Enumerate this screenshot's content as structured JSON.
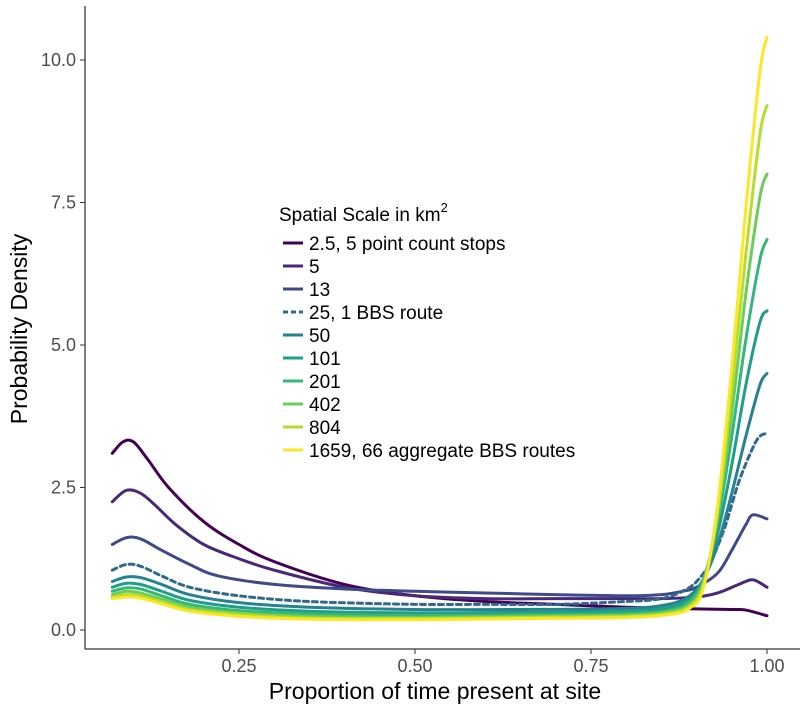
{
  "chart_data": {
    "type": "line",
    "xlabel": "Proportion of time present at site",
    "ylabel": "Probability Density",
    "xlim": [
      0.05,
      1.02
    ],
    "ylim": [
      -0.35,
      10.8
    ],
    "xticks": [
      0.25,
      0.5,
      0.75,
      1.0
    ],
    "xtick_labels": [
      "0.25",
      "0.50",
      "0.75",
      "1.00"
    ],
    "yticks": [
      0,
      2.5,
      5,
      7.5,
      10
    ],
    "ytick_labels": [
      "0.0",
      "2.5",
      "5.0",
      "7.5",
      "10.0"
    ],
    "grid": false,
    "legend": {
      "title": "Spatial Scale in km",
      "title_superscript": "2",
      "placement": "inside-center-left"
    },
    "series": [
      {
        "name": "2.5, 5 point count stops",
        "color": "#440154",
        "dashed": false,
        "x": [
          0.07,
          0.085,
          0.1,
          0.12,
          0.15,
          0.2,
          0.25,
          0.3,
          0.4,
          0.5,
          0.6,
          0.7,
          0.8,
          0.85,
          0.9,
          0.95,
          0.97,
          1.0
        ],
        "y": [
          3.1,
          3.3,
          3.3,
          3.0,
          2.5,
          1.9,
          1.5,
          1.2,
          0.8,
          0.6,
          0.5,
          0.45,
          0.4,
          0.38,
          0.37,
          0.36,
          0.35,
          0.25
        ]
      },
      {
        "name": "5",
        "color": "#482878",
        "dashed": false,
        "x": [
          0.07,
          0.09,
          0.11,
          0.13,
          0.16,
          0.2,
          0.25,
          0.3,
          0.4,
          0.5,
          0.6,
          0.7,
          0.8,
          0.85,
          0.9,
          0.93,
          0.96,
          0.98,
          1.0
        ],
        "y": [
          2.25,
          2.45,
          2.4,
          2.2,
          1.85,
          1.5,
          1.25,
          1.05,
          0.75,
          0.6,
          0.55,
          0.55,
          0.55,
          0.55,
          0.58,
          0.65,
          0.8,
          0.88,
          0.75
        ]
      },
      {
        "name": "13",
        "color": "#3E4A89",
        "dashed": false,
        "x": [
          0.07,
          0.09,
          0.11,
          0.14,
          0.18,
          0.22,
          0.3,
          0.4,
          0.5,
          0.6,
          0.7,
          0.8,
          0.85,
          0.88,
          0.9,
          0.93,
          0.95,
          0.97,
          0.98,
          1.0
        ],
        "y": [
          1.5,
          1.62,
          1.6,
          1.4,
          1.15,
          0.95,
          0.8,
          0.72,
          0.68,
          0.65,
          0.62,
          0.6,
          0.62,
          0.68,
          0.75,
          1.0,
          1.4,
          1.85,
          2.02,
          1.95
        ]
      },
      {
        "name": "25, 1 BBS route",
        "color": "#31688E",
        "dashed": true,
        "x": [
          0.07,
          0.09,
          0.11,
          0.14,
          0.18,
          0.25,
          0.35,
          0.5,
          0.6,
          0.7,
          0.8,
          0.85,
          0.88,
          0.9,
          0.92,
          0.94,
          0.96,
          0.98,
          0.99,
          1.0
        ],
        "y": [
          1.05,
          1.15,
          1.12,
          0.95,
          0.75,
          0.6,
          0.5,
          0.45,
          0.45,
          0.45,
          0.5,
          0.55,
          0.68,
          0.85,
          1.2,
          1.8,
          2.6,
          3.2,
          3.4,
          3.45
        ]
      },
      {
        "name": "50",
        "color": "#26828E",
        "dashed": false,
        "x": [
          0.07,
          0.09,
          0.11,
          0.14,
          0.18,
          0.25,
          0.35,
          0.5,
          0.65,
          0.8,
          0.86,
          0.89,
          0.91,
          0.93,
          0.95,
          0.97,
          0.99,
          1.0
        ],
        "y": [
          0.85,
          0.93,
          0.92,
          0.8,
          0.62,
          0.48,
          0.4,
          0.36,
          0.36,
          0.38,
          0.45,
          0.6,
          0.9,
          1.5,
          2.4,
          3.4,
          4.3,
          4.5
        ]
      },
      {
        "name": "101",
        "color": "#1F9E89",
        "dashed": false,
        "x": [
          0.07,
          0.09,
          0.11,
          0.14,
          0.18,
          0.25,
          0.35,
          0.5,
          0.65,
          0.8,
          0.86,
          0.89,
          0.91,
          0.93,
          0.95,
          0.97,
          0.99,
          1.0
        ],
        "y": [
          0.75,
          0.82,
          0.8,
          0.68,
          0.52,
          0.4,
          0.33,
          0.3,
          0.31,
          0.33,
          0.4,
          0.55,
          0.9,
          1.7,
          2.9,
          4.3,
          5.4,
          5.6
        ]
      },
      {
        "name": "201",
        "color": "#35B779",
        "dashed": false,
        "x": [
          0.07,
          0.09,
          0.11,
          0.14,
          0.18,
          0.25,
          0.35,
          0.5,
          0.65,
          0.8,
          0.86,
          0.89,
          0.91,
          0.93,
          0.95,
          0.97,
          0.99,
          1.0
        ],
        "y": [
          0.68,
          0.74,
          0.72,
          0.6,
          0.45,
          0.34,
          0.28,
          0.25,
          0.27,
          0.29,
          0.35,
          0.5,
          0.9,
          1.9,
          3.4,
          5.1,
          6.5,
          6.85
        ]
      },
      {
        "name": "402",
        "color": "#6DCD59",
        "dashed": false,
        "x": [
          0.07,
          0.09,
          0.11,
          0.14,
          0.18,
          0.25,
          0.35,
          0.5,
          0.65,
          0.8,
          0.86,
          0.89,
          0.91,
          0.93,
          0.95,
          0.97,
          0.99,
          1.0
        ],
        "y": [
          0.62,
          0.68,
          0.65,
          0.54,
          0.4,
          0.3,
          0.24,
          0.22,
          0.24,
          0.26,
          0.32,
          0.45,
          0.85,
          2.0,
          3.8,
          5.9,
          7.6,
          8.0
        ]
      },
      {
        "name": "804",
        "color": "#B4DE2C",
        "dashed": false,
        "x": [
          0.07,
          0.09,
          0.11,
          0.14,
          0.18,
          0.25,
          0.35,
          0.5,
          0.65,
          0.8,
          0.86,
          0.89,
          0.91,
          0.93,
          0.95,
          0.97,
          0.99,
          1.0
        ],
        "y": [
          0.58,
          0.62,
          0.6,
          0.5,
          0.36,
          0.27,
          0.21,
          0.2,
          0.22,
          0.24,
          0.29,
          0.42,
          0.8,
          2.1,
          4.2,
          6.6,
          8.7,
          9.2
        ]
      },
      {
        "name": "1659, 66 aggregate BBS routes",
        "color": "#FDE725",
        "dashed": false,
        "x": [
          0.07,
          0.09,
          0.11,
          0.14,
          0.18,
          0.25,
          0.35,
          0.5,
          0.65,
          0.8,
          0.86,
          0.89,
          0.91,
          0.93,
          0.95,
          0.97,
          0.99,
          1.0
        ],
        "y": [
          0.55,
          0.58,
          0.56,
          0.46,
          0.33,
          0.24,
          0.19,
          0.18,
          0.2,
          0.22,
          0.27,
          0.38,
          0.75,
          2.2,
          4.6,
          7.4,
          9.8,
          10.4
        ]
      }
    ]
  }
}
